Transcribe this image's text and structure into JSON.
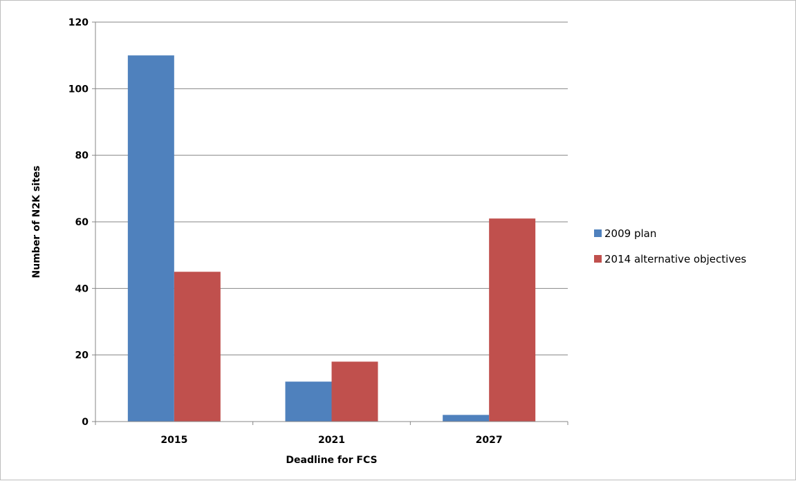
{
  "chart_data": {
    "type": "bar",
    "title": "",
    "xlabel": "Deadline for FCS",
    "ylabel": "Number of N2K sites",
    "categories": [
      "2015",
      "2021",
      "2027"
    ],
    "series": [
      {
        "name": "2009 plan",
        "values": [
          110,
          12,
          2
        ],
        "color": "#4f81bd"
      },
      {
        "name": "2014 alternative objectives",
        "values": [
          45,
          18,
          61
        ],
        "color": "#c0504d"
      }
    ],
    "ylim": [
      0,
      120
    ],
    "yticks": [
      0,
      20,
      40,
      60,
      80,
      100,
      120
    ],
    "grid": true,
    "legend": "right"
  }
}
